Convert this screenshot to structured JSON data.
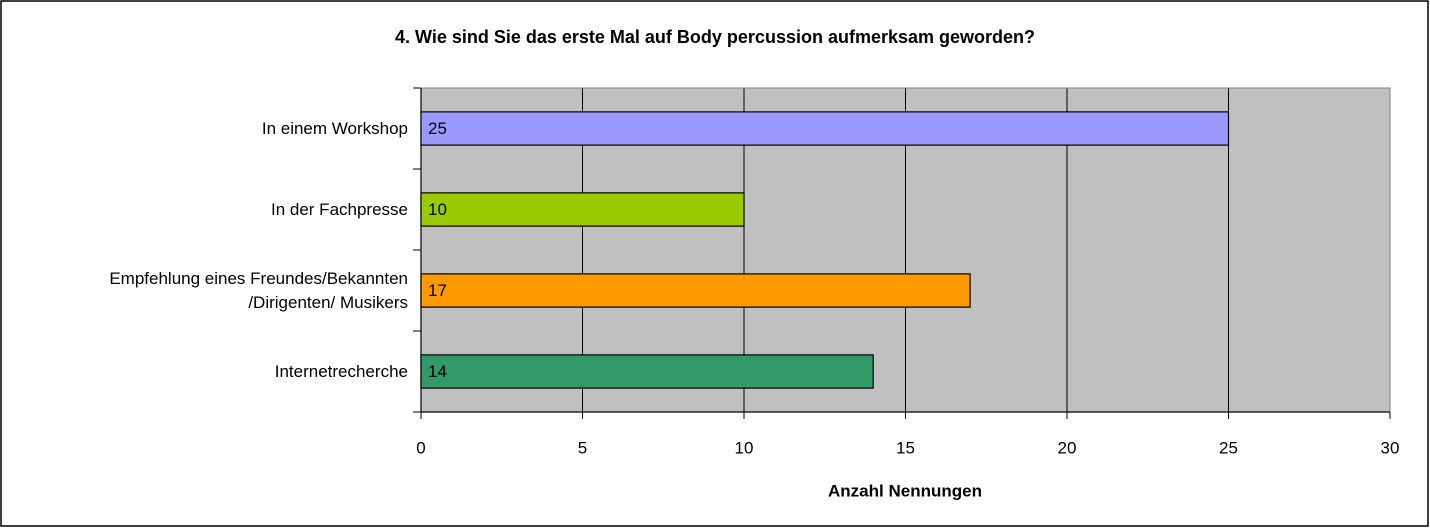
{
  "chart_data": {
    "type": "barh",
    "title": "4. Wie sind Sie das erste Mal auf Body percussion aufmerksam geworden?",
    "xlabel": "Anzahl Nennungen",
    "categories": [
      "In einem Workshop",
      "In der Fachpresse",
      "Empfehlung eines Freundes/Bekannten\n/Dirigenten/ Musikers",
      "Internetrecherche"
    ],
    "values": [
      25,
      10,
      17,
      14
    ],
    "colors": [
      "#9999ff",
      "#99cc00",
      "#ff9900",
      "#339966"
    ],
    "xlim": [
      0,
      30
    ],
    "xticks": [
      0,
      5,
      10,
      15,
      20,
      25,
      30
    ],
    "grid": true
  }
}
